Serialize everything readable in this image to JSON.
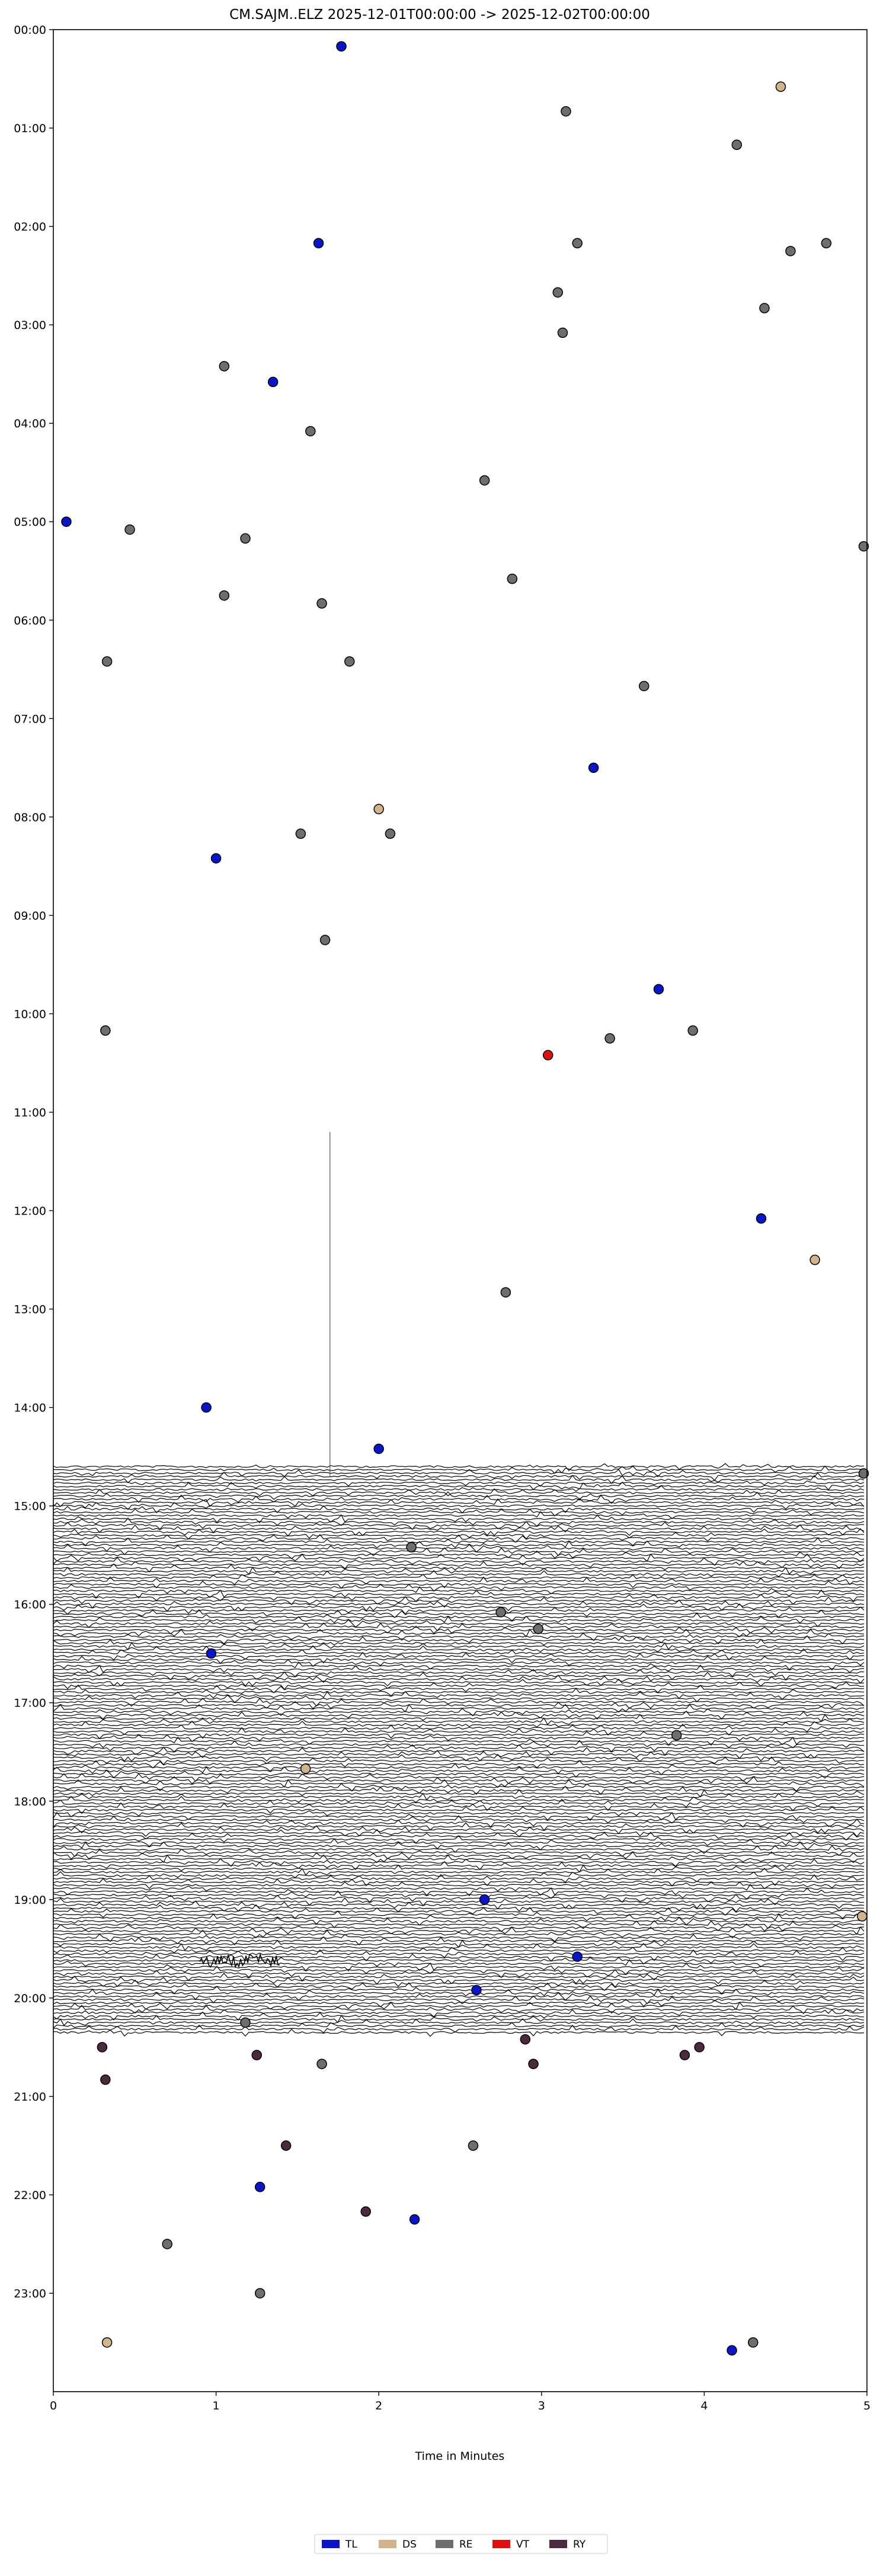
{
  "chart_data": {
    "type": "scatter",
    "title": "CM.SAJM..ELZ  2025-12-01T00:00:00 -> 2025-12-02T00:00:00",
    "xlabel": "Time in Minutes",
    "ylabel": "",
    "xlim": [
      0,
      5
    ],
    "ylim": [
      0,
      24
    ],
    "y_inverted": true,
    "x_ticks": [
      "0",
      "1",
      "2",
      "3",
      "4",
      "5"
    ],
    "y_ticks": [
      "00:00",
      "01:00",
      "02:00",
      "03:00",
      "04:00",
      "05:00",
      "06:00",
      "07:00",
      "08:00",
      "09:00",
      "10:00",
      "11:00",
      "12:00",
      "13:00",
      "14:00",
      "15:00",
      "16:00",
      "17:00",
      "18:00",
      "19:00",
      "20:00",
      "21:00",
      "22:00",
      "23:00"
    ],
    "grid": false,
    "legend_position": "bottom-center",
    "legend": [
      {
        "label": "TL",
        "color": "#0a14c8"
      },
      {
        "label": "DS",
        "color": "#d2b48c"
      },
      {
        "label": "RE",
        "color": "#6e6e6e"
      },
      {
        "label": "VT",
        "color": "#e01010"
      },
      {
        "label": "RY",
        "color": "#4b2a3e"
      }
    ],
    "seismogram": {
      "hour_start": 14.6,
      "hour_end": 20.35,
      "lines_per_hour": 30,
      "color": "#000000"
    },
    "series": [
      {
        "name": "TL",
        "color": "#0a14c8",
        "points": [
          {
            "x": 1.77,
            "y": 0.17
          },
          {
            "x": 1.63,
            "y": 2.17
          },
          {
            "x": 1.35,
            "y": 3.58
          },
          {
            "x": 0.08,
            "y": 5.0
          },
          {
            "x": 3.32,
            "y": 7.5
          },
          {
            "x": 1.0,
            "y": 8.42
          },
          {
            "x": 3.72,
            "y": 9.75
          },
          {
            "x": 4.35,
            "y": 12.08
          },
          {
            "x": 0.94,
            "y": 14.0
          },
          {
            "x": 2.0,
            "y": 14.42
          },
          {
            "x": 0.97,
            "y": 16.5
          },
          {
            "x": 2.65,
            "y": 19.0
          },
          {
            "x": 3.22,
            "y": 19.58
          },
          {
            "x": 2.6,
            "y": 19.92
          },
          {
            "x": 1.27,
            "y": 21.92
          },
          {
            "x": 2.22,
            "y": 22.25
          },
          {
            "x": 4.17,
            "y": 23.58
          }
        ]
      },
      {
        "name": "DS",
        "color": "#d2b48c",
        "points": [
          {
            "x": 4.47,
            "y": 0.58
          },
          {
            "x": 2.0,
            "y": 7.92
          },
          {
            "x": 4.68,
            "y": 12.5
          },
          {
            "x": 1.55,
            "y": 17.67
          },
          {
            "x": 4.97,
            "y": 19.17
          },
          {
            "x": 0.33,
            "y": 23.5
          }
        ]
      },
      {
        "name": "RE",
        "color": "#6e6e6e",
        "points": [
          {
            "x": 3.15,
            "y": 0.83
          },
          {
            "x": 4.2,
            "y": 1.17
          },
          {
            "x": 3.22,
            "y": 2.17
          },
          {
            "x": 4.53,
            "y": 2.25
          },
          {
            "x": 4.75,
            "y": 2.17
          },
          {
            "x": 3.1,
            "y": 2.67
          },
          {
            "x": 4.37,
            "y": 2.83
          },
          {
            "x": 3.13,
            "y": 3.08
          },
          {
            "x": 1.05,
            "y": 3.42
          },
          {
            "x": 1.58,
            "y": 4.08
          },
          {
            "x": 2.65,
            "y": 4.58
          },
          {
            "x": 0.47,
            "y": 5.08
          },
          {
            "x": 1.18,
            "y": 5.17
          },
          {
            "x": 4.98,
            "y": 5.25
          },
          {
            "x": 2.82,
            "y": 5.58
          },
          {
            "x": 1.05,
            "y": 5.75
          },
          {
            "x": 1.65,
            "y": 5.83
          },
          {
            "x": 0.33,
            "y": 6.42
          },
          {
            "x": 1.82,
            "y": 6.42
          },
          {
            "x": 3.63,
            "y": 6.67
          },
          {
            "x": 1.52,
            "y": 8.17
          },
          {
            "x": 2.07,
            "y": 8.17
          },
          {
            "x": 1.67,
            "y": 9.25
          },
          {
            "x": 0.32,
            "y": 10.17
          },
          {
            "x": 3.42,
            "y": 10.25
          },
          {
            "x": 3.93,
            "y": 10.17
          },
          {
            "x": 2.78,
            "y": 12.83
          },
          {
            "x": 4.98,
            "y": 14.67
          },
          {
            "x": 2.2,
            "y": 15.42
          },
          {
            "x": 2.75,
            "y": 16.08
          },
          {
            "x": 2.98,
            "y": 16.25
          },
          {
            "x": 3.83,
            "y": 17.33
          },
          {
            "x": 1.18,
            "y": 20.25
          },
          {
            "x": 1.65,
            "y": 20.67
          },
          {
            "x": 0.7,
            "y": 22.5
          },
          {
            "x": 2.58,
            "y": 21.5
          },
          {
            "x": 1.27,
            "y": 23.0
          },
          {
            "x": 4.3,
            "y": 23.5
          }
        ]
      },
      {
        "name": "VT",
        "color": "#e01010",
        "points": [
          {
            "x": 3.04,
            "y": 10.42
          }
        ]
      },
      {
        "name": "RY",
        "color": "#4b2a3e",
        "points": [
          {
            "x": 0.3,
            "y": 20.5
          },
          {
            "x": 0.32,
            "y": 20.83
          },
          {
            "x": 1.25,
            "y": 20.58
          },
          {
            "x": 2.9,
            "y": 20.42
          },
          {
            "x": 2.95,
            "y": 20.67
          },
          {
            "x": 3.88,
            "y": 20.58
          },
          {
            "x": 3.97,
            "y": 20.5
          },
          {
            "x": 1.43,
            "y": 21.5
          },
          {
            "x": 1.92,
            "y": 22.17
          }
        ]
      }
    ]
  }
}
